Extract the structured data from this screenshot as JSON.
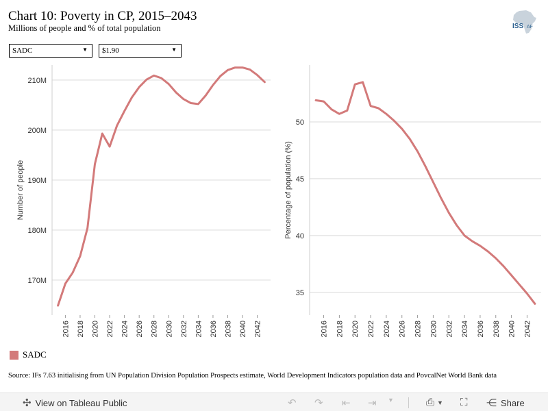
{
  "header": {
    "title": "Chart 10: Poverty in CP, 2015–2043",
    "subtitle": "Millions of people and % of total population",
    "logo_text": "ISS",
    "logo_subtext": "AF"
  },
  "filters": {
    "region": "SADC",
    "poverty_line": "$1.90"
  },
  "chart_data": [
    {
      "type": "line",
      "ylabel": "Number of people",
      "ylim": [
        163,
        213
      ],
      "yticks": [
        170,
        180,
        190,
        200,
        210
      ],
      "ytick_labels": [
        "170M",
        "180M",
        "190M",
        "200M",
        "210M"
      ],
      "xticks": [
        2016,
        2018,
        2020,
        2022,
        2024,
        2026,
        2028,
        2030,
        2032,
        2034,
        2036,
        2038,
        2040,
        2042
      ],
      "xlim": [
        2014.2,
        2043.8
      ],
      "grid": true,
      "series": [
        {
          "name": "SADC",
          "color": "#d37a7a",
          "x": [
            2015,
            2016,
            2017,
            2018,
            2019,
            2020,
            2021,
            2022,
            2023,
            2024,
            2025,
            2026,
            2027,
            2028,
            2029,
            2030,
            2031,
            2032,
            2033,
            2034,
            2035,
            2036,
            2037,
            2038,
            2039,
            2040,
            2041,
            2042,
            2043
          ],
          "values": [
            164.9,
            169.3,
            171.5,
            174.8,
            180.4,
            193.2,
            199.3,
            196.7,
            200.9,
            203.8,
            206.5,
            208.6,
            210.1,
            210.9,
            210.4,
            209.2,
            207.5,
            206.2,
            205.4,
            205.2,
            206.9,
            209.0,
            210.8,
            212.0,
            212.5,
            212.5,
            212.1,
            211.0,
            209.6
          ]
        }
      ]
    },
    {
      "type": "line",
      "ylabel": "Percentage of population (%)",
      "ylim": [
        33,
        55
      ],
      "yticks": [
        35,
        40,
        45,
        50
      ],
      "ytick_labels": [
        "35",
        "40",
        "45",
        "50"
      ],
      "xticks": [
        2016,
        2018,
        2020,
        2022,
        2024,
        2026,
        2028,
        2030,
        2032,
        2034,
        2036,
        2038,
        2040,
        2042
      ],
      "xlim": [
        2014.2,
        2043.8
      ],
      "grid": true,
      "series": [
        {
          "name": "SADC",
          "color": "#d37a7a",
          "x": [
            2015,
            2016,
            2017,
            2018,
            2019,
            2020,
            2021,
            2022,
            2023,
            2024,
            2025,
            2026,
            2027,
            2028,
            2029,
            2030,
            2031,
            2032,
            2033,
            2034,
            2035,
            2036,
            2037,
            2038,
            2039,
            2040,
            2041,
            2042,
            2043
          ],
          "values": [
            51.9,
            51.8,
            51.1,
            50.7,
            51.0,
            53.3,
            53.5,
            51.4,
            51.2,
            50.7,
            50.1,
            49.4,
            48.5,
            47.4,
            46.1,
            44.7,
            43.3,
            42.0,
            40.9,
            40.0,
            39.5,
            39.1,
            38.6,
            38.0,
            37.3,
            36.5,
            35.7,
            34.9,
            34.0
          ]
        }
      ]
    }
  ],
  "legend": {
    "entries": [
      {
        "label": "SADC",
        "color": "#d37a7a"
      }
    ]
  },
  "source": "Source: IFs 7.63 initialising from UN Population Division Population Prospects estimate, World Development Indicators population data and PovcalNet World Bank data",
  "toolbar": {
    "view_label": "View on Tableau Public",
    "share_label": "Share"
  }
}
